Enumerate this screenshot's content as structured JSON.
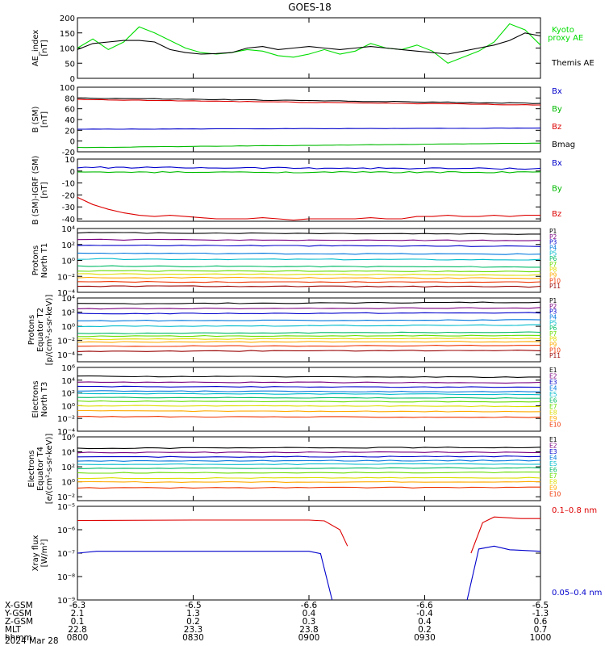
{
  "title": "GOES-18",
  "date_label": "2024 Mar 28",
  "x_axis": {
    "time_ticks": [
      "0800",
      "0830",
      "0900",
      "0930",
      "1000"
    ],
    "table": [
      {
        "label": "X-GSM",
        "values": [
          "-6.3",
          "-6.5",
          "-6.6",
          "-6.6",
          "-6.5"
        ]
      },
      {
        "label": "Y-GSM",
        "values": [
          "2.1",
          "1.3",
          "0.4",
          "-0.4",
          "-1.3"
        ]
      },
      {
        "label": "Z-GSM",
        "values": [
          "0.1",
          "0.2",
          "0.3",
          "0.4",
          "0.6"
        ]
      },
      {
        "label": "MLT",
        "values": [
          "22.8",
          "23.3",
          "23.8",
          "0.2",
          "0.7"
        ]
      },
      {
        "label": "hhmm",
        "values": [
          "0800",
          "0830",
          "0900",
          "0930",
          "1000"
        ]
      }
    ]
  },
  "chart_data": [
    {
      "type": "line",
      "ylabel": [
        "AE_index",
        "[nT]"
      ],
      "ylim": [
        0,
        200
      ],
      "yticks": [
        0,
        50,
        100,
        150,
        200
      ],
      "x": [
        0,
        4,
        8,
        12,
        16,
        20,
        24,
        28,
        32,
        36,
        40,
        44,
        48,
        52,
        56,
        60,
        64,
        68,
        72,
        76,
        80,
        84,
        88,
        92,
        96,
        100,
        104,
        108,
        112,
        116,
        120
      ],
      "legend": [
        {
          "name": "Kyoto\nproxy AE",
          "color": "#00dd00"
        },
        {
          "name": "Themis AE",
          "color": "#000000"
        }
      ],
      "series": [
        {
          "name": "Kyoto proxy AE",
          "color": "#00dd00",
          "values": [
            100,
            130,
            95,
            120,
            170,
            150,
            125,
            100,
            85,
            80,
            85,
            95,
            90,
            75,
            70,
            80,
            95,
            80,
            90,
            115,
            100,
            95,
            110,
            90,
            50,
            70,
            90,
            120,
            180,
            160,
            110
          ]
        },
        {
          "name": "Themis AE",
          "color": "#000000",
          "values": [
            95,
            115,
            120,
            125,
            125,
            120,
            95,
            85,
            80,
            82,
            85,
            100,
            105,
            95,
            100,
            105,
            100,
            95,
            100,
            105,
            100,
            95,
            90,
            85,
            80,
            90,
            100,
            110,
            125,
            150,
            140
          ]
        }
      ]
    },
    {
      "type": "line",
      "ylabel": [
        "B (SM)",
        "[nT]"
      ],
      "ylim": [
        -20,
        100
      ],
      "yticks": [
        -20,
        0,
        20,
        40,
        60,
        80,
        100
      ],
      "legend": [
        {
          "name": "Bx",
          "color": "#0000cc"
        },
        {
          "name": "By",
          "color": "#00bb00"
        },
        {
          "name": "Bz",
          "color": "#dd0000"
        },
        {
          "name": "Bmag",
          "color": "#000000"
        }
      ],
      "series": [
        {
          "name": "Bmag",
          "color": "#000000",
          "start": 80,
          "end": 70,
          "noise": 0.6
        },
        {
          "name": "Bz",
          "color": "#dd0000",
          "start": 77,
          "end": 67,
          "noise": 0.6
        },
        {
          "name": "Bx",
          "color": "#0000cc",
          "start": 22,
          "end": 24,
          "noise": 0.3
        },
        {
          "name": "By",
          "color": "#00bb00",
          "start": -12,
          "end": -4,
          "noise": 0.3
        }
      ]
    },
    {
      "type": "line",
      "ylabel": [
        "B (SM)-IGRF (SM)",
        "[nT]"
      ],
      "ylim": [
        -42,
        10
      ],
      "yticks": [
        -40,
        -30,
        -20,
        -10,
        0,
        10
      ],
      "legend": [
        {
          "name": "Bx",
          "color": "#0000cc"
        },
        {
          "name": "By",
          "color": "#00bb00"
        },
        {
          "name": "Bz",
          "color": "#dd0000"
        }
      ],
      "series": [
        {
          "name": "Bx",
          "color": "#0000cc",
          "start": 3,
          "end": 2,
          "noise": 0.6
        },
        {
          "name": "By",
          "color": "#00bb00",
          "start": -1,
          "end": -1,
          "noise": 0.5
        },
        {
          "name": "Bz",
          "color": "#dd0000",
          "values": [
            -22,
            -28,
            -32,
            -35,
            -37,
            -38,
            -37,
            -38,
            -39,
            -40,
            -40,
            -40,
            -39,
            -40,
            -41,
            -40,
            -40,
            -40,
            -40,
            -39,
            -40,
            -40,
            -38,
            -38,
            -37,
            -38,
            -38,
            -37,
            -38,
            -37,
            -37
          ]
        }
      ]
    },
    {
      "type": "line",
      "scale": "log",
      "ylabel": [
        "Protons",
        "North T1"
      ],
      "ylim": [
        0.0001,
        10000
      ],
      "yticks": [
        0.0001,
        0.01,
        1,
        100,
        10000
      ],
      "legend": [
        {
          "name": "P1",
          "color": "#000000"
        },
        {
          "name": "P2",
          "color": "#7a0080"
        },
        {
          "name": "P3",
          "color": "#0000cc"
        },
        {
          "name": "P4",
          "color": "#0077dd"
        },
        {
          "name": "P5",
          "color": "#00bbcc"
        },
        {
          "name": "P6",
          "color": "#00bb66"
        },
        {
          "name": "P7",
          "color": "#66dd00"
        },
        {
          "name": "P8",
          "color": "#dddd00"
        },
        {
          "name": "P9",
          "color": "#ffaa00"
        },
        {
          "name": "P10",
          "color": "#ee3300"
        },
        {
          "name": "P11",
          "color": "#990000"
        }
      ],
      "series": [
        {
          "name": "P1",
          "color": "#000000",
          "values": [
            3000,
            2000
          ]
        },
        {
          "name": "P2",
          "color": "#7a0080",
          "values": [
            400,
            300
          ]
        },
        {
          "name": "P3",
          "color": "#0000cc",
          "values": [
            80,
            60
          ]
        },
        {
          "name": "P4",
          "color": "#0077dd",
          "values": [
            8,
            6
          ]
        },
        {
          "name": "P5",
          "color": "#00bbcc",
          "values": [
            1.5,
            1.2
          ]
        },
        {
          "name": "P6",
          "color": "#00bb66",
          "values": [
            0.2,
            0.15
          ]
        },
        {
          "name": "P7",
          "color": "#66dd00",
          "values": [
            0.05,
            0.04
          ]
        },
        {
          "name": "P8",
          "color": "#dddd00",
          "values": [
            0.02,
            0.015
          ]
        },
        {
          "name": "P9",
          "color": "#ffaa00",
          "values": [
            0.007,
            0.006
          ]
        },
        {
          "name": "P10",
          "color": "#ee3300",
          "values": [
            0.002,
            0.002
          ]
        },
        {
          "name": "P11",
          "color": "#990000",
          "values": [
            0.0006,
            0.0005
          ]
        }
      ]
    },
    {
      "type": "line",
      "scale": "log",
      "ylabel": [
        "Protons",
        "Equator T2",
        "[p/(cm²-s-sr-keV)]"
      ],
      "ylim": [
        1e-05,
        10000
      ],
      "yticks": [
        0.0001,
        0.01,
        1,
        100,
        10000
      ],
      "legend": [
        {
          "name": "P1",
          "color": "#000000"
        },
        {
          "name": "P2",
          "color": "#7a0080"
        },
        {
          "name": "P3",
          "color": "#0000cc"
        },
        {
          "name": "P4",
          "color": "#0077dd"
        },
        {
          "name": "P5",
          "color": "#00bbcc"
        },
        {
          "name": "P6",
          "color": "#00bb66"
        },
        {
          "name": "P7",
          "color": "#66dd00"
        },
        {
          "name": "P8",
          "color": "#dddd00"
        },
        {
          "name": "P9",
          "color": "#ffaa00"
        },
        {
          "name": "P10",
          "color": "#ee3300"
        },
        {
          "name": "P11",
          "color": "#990000"
        }
      ],
      "series": [
        {
          "name": "P1",
          "color": "#000000",
          "values": [
            1500,
            2500
          ]
        },
        {
          "name": "P2",
          "color": "#7a0080",
          "values": [
            300,
            400
          ]
        },
        {
          "name": "P3",
          "color": "#0000cc",
          "values": [
            60,
            80
          ]
        },
        {
          "name": "P4",
          "color": "#0077dd",
          "values": [
            6,
            8
          ]
        },
        {
          "name": "P5",
          "color": "#00bbcc",
          "values": [
            1,
            1.5
          ]
        },
        {
          "name": "P6",
          "color": "#00bb66",
          "values": [
            0.1,
            0.15
          ]
        },
        {
          "name": "P7",
          "color": "#66dd00",
          "values": [
            0.04,
            0.05
          ]
        },
        {
          "name": "P8",
          "color": "#dddd00",
          "values": [
            0.015,
            0.02
          ]
        },
        {
          "name": "P9",
          "color": "#ffaa00",
          "values": [
            0.006,
            0.007
          ]
        },
        {
          "name": "P10",
          "color": "#ee3300",
          "values": [
            0.0015,
            0.002
          ]
        },
        {
          "name": "P11",
          "color": "#990000",
          "values": [
            0.0003,
            0.0004
          ]
        }
      ]
    },
    {
      "type": "line",
      "scale": "log",
      "ylabel": [
        "Electrons",
        "North T3"
      ],
      "ylim": [
        0.0001,
        1000000
      ],
      "yticks": [
        0.0001,
        0.01,
        1,
        100,
        10000,
        1000000
      ],
      "legend": [
        {
          "name": "E1",
          "color": "#000000"
        },
        {
          "name": "E2",
          "color": "#7a0080"
        },
        {
          "name": "E3",
          "color": "#0000cc"
        },
        {
          "name": "E4",
          "color": "#0077dd"
        },
        {
          "name": "E5",
          "color": "#00bbcc"
        },
        {
          "name": "E6",
          "color": "#00bb66"
        },
        {
          "name": "E7",
          "color": "#66dd00"
        },
        {
          "name": "E8",
          "color": "#dddd00"
        },
        {
          "name": "E9",
          "color": "#ffaa00"
        },
        {
          "name": "E10",
          "color": "#ee3300"
        }
      ],
      "series": [
        {
          "name": "E1",
          "color": "#000000",
          "values": [
            40000,
            30000
          ]
        },
        {
          "name": "E2",
          "color": "#7a0080",
          "values": [
            5000,
            4000
          ]
        },
        {
          "name": "E3",
          "color": "#0000cc",
          "values": [
            1000,
            800
          ]
        },
        {
          "name": "E4",
          "color": "#0077dd",
          "values": [
            200,
            150
          ]
        },
        {
          "name": "E5",
          "color": "#00bbcc",
          "values": [
            80,
            60
          ]
        },
        {
          "name": "E6",
          "color": "#00bb66",
          "values": [
            20,
            15
          ]
        },
        {
          "name": "E7",
          "color": "#66dd00",
          "values": [
            5,
            4
          ]
        },
        {
          "name": "E8",
          "color": "#dddd00",
          "values": [
            1,
            0.8
          ]
        },
        {
          "name": "E9",
          "color": "#ffaa00",
          "values": [
            0.15,
            0.12
          ]
        },
        {
          "name": "E10",
          "color": "#ee3300",
          "values": [
            0.02,
            0.015
          ]
        }
      ]
    },
    {
      "type": "line",
      "scale": "log",
      "ylabel": [
        "Electrons",
        "Equator T4",
        "[e/(cm²-s-sr-keV)]"
      ],
      "ylim": [
        0.003,
        1000000
      ],
      "yticks": [
        0.01,
        1,
        100,
        10000,
        1000000
      ],
      "legend": [
        {
          "name": "E1",
          "color": "#000000"
        },
        {
          "name": "E2",
          "color": "#7a0080"
        },
        {
          "name": "E3",
          "color": "#0000cc"
        },
        {
          "name": "E4",
          "color": "#0077dd"
        },
        {
          "name": "E5",
          "color": "#00bbcc"
        },
        {
          "name": "E6",
          "color": "#00bb66"
        },
        {
          "name": "E7",
          "color": "#66dd00"
        },
        {
          "name": "E8",
          "color": "#dddd00"
        },
        {
          "name": "E9",
          "color": "#ffaa00"
        },
        {
          "name": "E10",
          "color": "#ee3300"
        }
      ],
      "series": [
        {
          "name": "E1",
          "color": "#000000",
          "values": [
            30000,
            40000
          ]
        },
        {
          "name": "E2",
          "color": "#7a0080",
          "values": [
            8000,
            9000
          ]
        },
        {
          "name": "E3",
          "color": "#0000cc",
          "values": [
            2000,
            2500
          ]
        },
        {
          "name": "E4",
          "color": "#0077dd",
          "values": [
            600,
            700
          ]
        },
        {
          "name": "E5",
          "color": "#00bbcc",
          "values": [
            200,
            250
          ]
        },
        {
          "name": "E6",
          "color": "#00bb66",
          "values": [
            60,
            70
          ]
        },
        {
          "name": "E7",
          "color": "#66dd00",
          "values": [
            15,
            18
          ]
        },
        {
          "name": "E8",
          "color": "#dddd00",
          "values": [
            3,
            3.5
          ]
        },
        {
          "name": "E9",
          "color": "#ffaa00",
          "values": [
            0.9,
            1
          ]
        },
        {
          "name": "E10",
          "color": "#ee3300",
          "values": [
            0.15,
            0.18
          ]
        }
      ]
    },
    {
      "type": "line",
      "scale": "log",
      "ylabel": [
        "Xray flux",
        "[W/m²]"
      ],
      "ylim": [
        1e-09,
        1e-05
      ],
      "yticks": [
        1e-09,
        1e-08,
        1e-07,
        1e-06,
        1e-05
      ],
      "ytick_labels": [
        "10⁻⁹",
        "10⁻⁸",
        "10⁻⁷",
        "10⁻⁶",
        "10⁻⁵"
      ],
      "legend": [
        {
          "name": "0.1–0.8 nm",
          "color": "#dd0000"
        },
        {
          "name": "0.05–0.4 nm",
          "color": "#0000cc"
        }
      ],
      "series": [
        {
          "name": "0.1–0.8 nm",
          "color": "#dd0000",
          "segments": [
            [
              [
                0,
                2.5e-06
              ],
              [
                30,
                2.6e-06
              ],
              [
                60,
                2.6e-06
              ],
              [
                64,
                2.4e-06
              ],
              [
                68,
                1e-06
              ],
              [
                70,
                2e-07
              ]
            ],
            [
              [
                102,
                1e-07
              ],
              [
                105,
                2e-06
              ],
              [
                108,
                3.5e-06
              ],
              [
                115,
                3e-06
              ],
              [
                120,
                3e-06
              ]
            ]
          ]
        },
        {
          "name": "0.05–0.4 nm",
          "color": "#0000cc",
          "segments": [
            [
              [
                0,
                1e-07
              ],
              [
                5,
                1.2e-07
              ],
              [
                30,
                1.2e-07
              ],
              [
                60,
                1.2e-07
              ],
              [
                63,
                9.5e-08
              ],
              [
                66,
                1e-09
              ]
            ],
            [
              [
                101,
                1e-09
              ],
              [
                104,
                1.5e-07
              ],
              [
                108,
                2e-07
              ],
              [
                112,
                1.4e-07
              ],
              [
                120,
                1.2e-07
              ]
            ]
          ]
        }
      ]
    }
  ]
}
